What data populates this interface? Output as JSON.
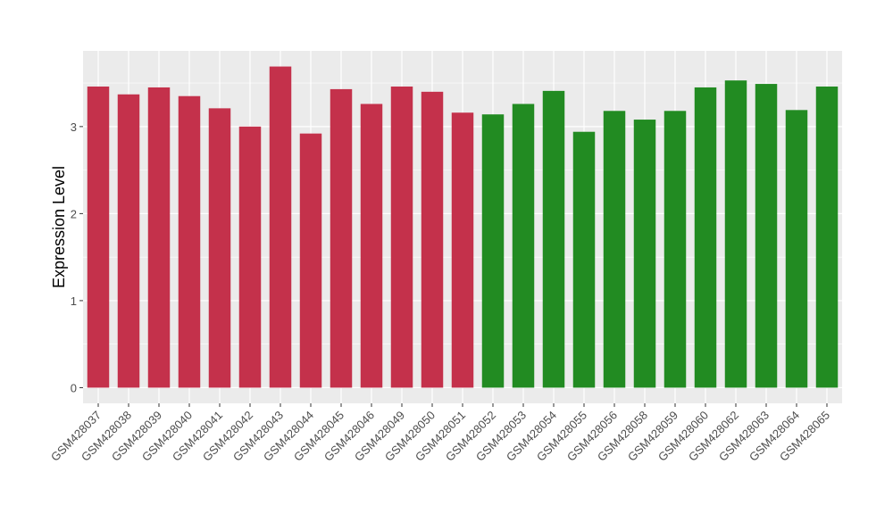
{
  "chart_data": {
    "type": "bar",
    "title": "",
    "xlabel": "",
    "ylabel": "Expression Level",
    "ylim": [
      -0.18,
      3.87
    ],
    "yticks": [
      0,
      1,
      2,
      3
    ],
    "grid": true,
    "categories": [
      "GSM428037",
      "GSM428038",
      "GSM428039",
      "GSM428040",
      "GSM428041",
      "GSM428042",
      "GSM428043",
      "GSM428044",
      "GSM428045",
      "GSM428046",
      "GSM428049",
      "GSM428050",
      "GSM428051",
      "GSM428052",
      "GSM428053",
      "GSM428054",
      "GSM428055",
      "GSM428056",
      "GSM428058",
      "GSM428059",
      "GSM428060",
      "GSM428062",
      "GSM428063",
      "GSM428064",
      "GSM428065"
    ],
    "values": [
      3.46,
      3.37,
      3.45,
      3.35,
      3.21,
      3.0,
      3.69,
      2.92,
      3.43,
      3.26,
      3.46,
      3.4,
      3.16,
      3.14,
      3.26,
      3.41,
      2.94,
      3.18,
      3.08,
      3.18,
      3.45,
      3.53,
      3.49,
      3.19,
      3.46
    ],
    "groups": [
      "red",
      "red",
      "red",
      "red",
      "red",
      "red",
      "red",
      "red",
      "red",
      "red",
      "red",
      "red",
      "red",
      "green",
      "green",
      "green",
      "green",
      "green",
      "green",
      "green",
      "green",
      "green",
      "green",
      "green",
      "green"
    ],
    "colors": {
      "red": "#c4314b",
      "green": "#228b22",
      "panel": "#ebebeb",
      "grid": "#ffffff"
    }
  }
}
